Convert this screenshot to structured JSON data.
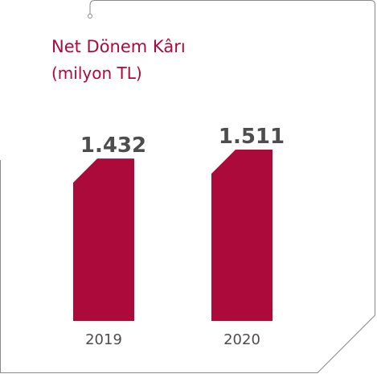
{
  "chart_data": {
    "type": "bar",
    "title": "Net Dönem Kârı",
    "subtitle": "(milyon TL)",
    "categories": [
      "2019",
      "2020"
    ],
    "values": [
      1432,
      1511
    ],
    "value_labels": [
      "1.432",
      "1.511"
    ],
    "xlabel": "",
    "ylabel": "",
    "ylim": [
      0,
      1511
    ],
    "grid": false,
    "legend": "none"
  },
  "colors": {
    "bar": "#ad0a3c",
    "title": "#b0083a",
    "text": "#4d4d4d",
    "frame": "#8a8a8a"
  }
}
